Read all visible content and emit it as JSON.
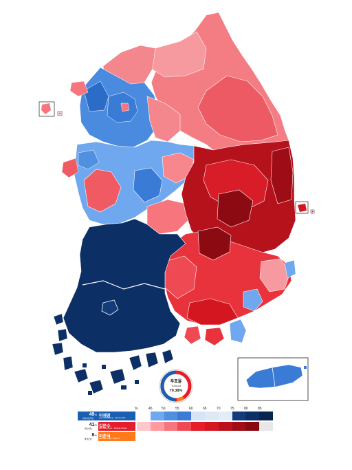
{
  "turnout": {
    "label_ko": "투표율",
    "label_en": "Turnout",
    "value": "79.38%",
    "ring_fraction": 0.7938
  },
  "legend": {
    "percent_label": "%",
    "ticks": [
      "45",
      "50",
      "55",
      "60",
      "65",
      "70",
      "75",
      "80",
      "85"
    ],
    "candidates": [
      {
        "pct": "49",
        "pct_unit": "%",
        "party_ko": "더불어민주당",
        "name_ko": "이재명",
        "name_en": "Lee Jae-myung · Democratic",
        "color": "#1a5fb4"
      },
      {
        "pct": "41",
        "pct_unit": "%",
        "party_ko": "국민의힘",
        "name_ko": "김문수",
        "name_en": "Kim Moon-soo · People Power",
        "color": "#e61e2b"
      },
      {
        "pct": "8",
        "pct_unit": "%",
        "party_ko": "개혁신당",
        "name_ko": "이준석",
        "name_en": "Lee Jun-seok · Reform",
        "color": "#ff7a1a"
      }
    ],
    "blue_scale": [
      "#ffffff",
      "#6fa8ee",
      "#4f90e0",
      "#3a7bd5",
      "#d6e4f7",
      "#dfe9f6",
      "#e3ecf7",
      "#123d7a",
      "#0c2f66",
      "#08244f"
    ],
    "red_scale": [
      "#ffc9cc",
      "#ff9aa0",
      "#f7767e",
      "#ef4a54",
      "#e61e2b",
      "#d41621",
      "#bb111b",
      "#a20d15",
      "#880a10",
      "#e8e8e8"
    ]
  },
  "colors": {
    "democratic_dark": "#0c2f66",
    "democratic_mid": "#3a7bd5",
    "democratic_light": "#6fa8ee",
    "ppp_light": "#f7868d",
    "ppp_mid": "#e8323c",
    "ppp_dark": "#a30f18",
    "ppp_darkest": "#7d0a10"
  }
}
